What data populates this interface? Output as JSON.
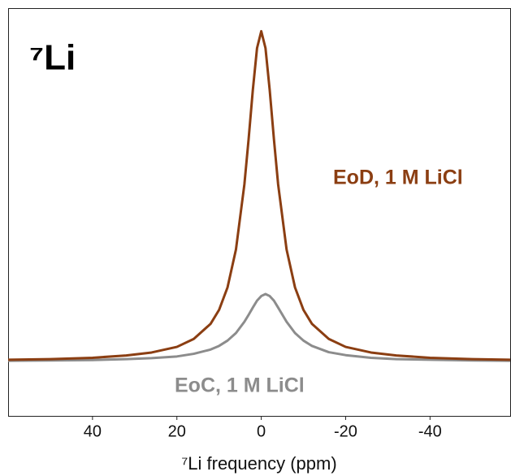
{
  "chart_data": {
    "type": "line",
    "annotation": "⁷Li",
    "x_label": "⁷Li frequency (ppm)",
    "x": [
      60,
      50,
      40,
      32,
      26,
      20,
      16,
      12,
      10,
      8,
      6,
      4,
      3,
      2,
      1,
      0,
      -1,
      -2,
      -3,
      -4,
      -6,
      -8,
      -10,
      -12,
      -16,
      -20,
      -26,
      -32,
      -40,
      -50,
      -59
    ],
    "series": [
      {
        "name": "EoD, 1 M LiCl",
        "color": "#8b3e12",
        "values": [
          0.005,
          0.007,
          0.011,
          0.018,
          0.027,
          0.044,
          0.068,
          0.114,
          0.156,
          0.224,
          0.339,
          0.536,
          0.673,
          0.822,
          0.949,
          1,
          0.949,
          0.822,
          0.673,
          0.536,
          0.339,
          0.224,
          0.156,
          0.114,
          0.068,
          0.044,
          0.027,
          0.018,
          0.011,
          0.007,
          0.005
        ]
      },
      {
        "name": "EoC, 1 M LiCl",
        "color": "#8c8c8c",
        "values": [
          0.002,
          0.003,
          0.004,
          0.007,
          0.01,
          0.015,
          0.023,
          0.036,
          0.047,
          0.063,
          0.086,
          0.12,
          0.141,
          0.163,
          0.184,
          0.198,
          0.204,
          0.198,
          0.184,
          0.163,
          0.12,
          0.086,
          0.063,
          0.047,
          0.028,
          0.019,
          0.011,
          0.007,
          0.005,
          0.003,
          0.002
        ]
      }
    ],
    "xlim": [
      60,
      -59
    ],
    "ylim": [
      -0.165,
      1.07
    ],
    "xticks": [
      40,
      20,
      0,
      -20,
      -40
    ]
  }
}
